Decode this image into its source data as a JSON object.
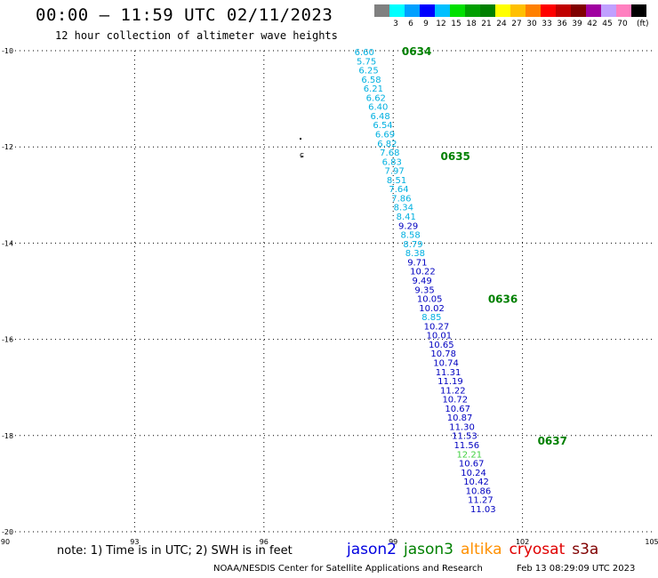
{
  "header": {
    "title": "00:00 – 11:59 UTC 02/11/2023",
    "subtitle": "12 hour collection of altimeter wave heights"
  },
  "colorbar": {
    "colors": [
      "#808080",
      "#00ffff",
      "#00a0ff",
      "#0000ff",
      "#00c0ff",
      "#00e000",
      "#00a000",
      "#008000",
      "#ffff00",
      "#ffc000",
      "#ff8000",
      "#ff0000",
      "#c00000",
      "#800000",
      "#a000a0",
      "#c0a0ff",
      "#ff80c0",
      "#000000"
    ],
    "labels": [
      "3",
      "6",
      "9",
      "12",
      "15",
      "18",
      "21",
      "24",
      "27",
      "30",
      "33",
      "36",
      "39",
      "42",
      "45",
      "70"
    ],
    "unit": "(ft)"
  },
  "chart_data": {
    "type": "scatter",
    "x_axis": {
      "range": [
        90,
        105
      ],
      "ticks": [
        "90",
        "93",
        "96",
        "99",
        "102",
        "105"
      ]
    },
    "y_axis": {
      "range": [
        -20,
        -10
      ],
      "ticks": [
        "-10",
        "-12",
        "-14",
        "-16",
        "-18",
        "-20"
      ]
    },
    "grid": true,
    "time_labels": [
      {
        "text": "0634",
        "lat": -10.0,
        "lon": 99.2,
        "color": "#008000"
      },
      {
        "text": "0635",
        "lat": -12.18,
        "lon": 100.1,
        "color": "#008000"
      },
      {
        "text": "0636",
        "lat": -15.15,
        "lon": 101.2,
        "color": "#008000"
      },
      {
        "text": "0637",
        "lat": -18.1,
        "lon": 102.35,
        "color": "#008000"
      }
    ],
    "swh_points": [
      {
        "v": "6.60",
        "lat": -10.0,
        "lon": 98.1,
        "c": "#00b0e0"
      },
      {
        "v": "5.75",
        "lat": -10.19,
        "lon": 98.15,
        "c": "#00b0e0"
      },
      {
        "v": "6.25",
        "lat": -10.38,
        "lon": 98.2,
        "c": "#00b0e0"
      },
      {
        "v": "6.58",
        "lat": -10.57,
        "lon": 98.26,
        "c": "#00b0e0"
      },
      {
        "v": "6.21",
        "lat": -10.76,
        "lon": 98.31,
        "c": "#00b0e0"
      },
      {
        "v": "6.62",
        "lat": -10.95,
        "lon": 98.37,
        "c": "#00b0e0"
      },
      {
        "v": "6.40",
        "lat": -11.14,
        "lon": 98.42,
        "c": "#00b0e0"
      },
      {
        "v": "6.48",
        "lat": -11.33,
        "lon": 98.47,
        "c": "#00b0e0"
      },
      {
        "v": "6.54",
        "lat": -11.52,
        "lon": 98.53,
        "c": "#00b0e0"
      },
      {
        "v": "6.69",
        "lat": -11.71,
        "lon": 98.58,
        "c": "#00b0e0"
      },
      {
        "v": "6.82",
        "lat": -11.9,
        "lon": 98.63,
        "c": "#00b0e0"
      },
      {
        "v": "7.68",
        "lat": -12.09,
        "lon": 98.69,
        "c": "#00b0e0"
      },
      {
        "v": "6.83",
        "lat": -12.28,
        "lon": 98.74,
        "c": "#00b0e0"
      },
      {
        "v": "7.97",
        "lat": -12.47,
        "lon": 98.8,
        "c": "#00b0e0"
      },
      {
        "v": "8.51",
        "lat": -12.66,
        "lon": 98.85,
        "c": "#00b0e0"
      },
      {
        "v": "7.64",
        "lat": -12.85,
        "lon": 98.9,
        "c": "#00b0e0"
      },
      {
        "v": "7.86",
        "lat": -13.04,
        "lon": 98.96,
        "c": "#00b0e0"
      },
      {
        "v": "8.34",
        "lat": -13.23,
        "lon": 99.01,
        "c": "#00b0e0"
      },
      {
        "v": "8.41",
        "lat": -13.42,
        "lon": 99.07,
        "c": "#00b0e0"
      },
      {
        "v": "9.29",
        "lat": -13.61,
        "lon": 99.12,
        "c": "#0000c0"
      },
      {
        "v": "8.58",
        "lat": -13.8,
        "lon": 99.17,
        "c": "#00b0e0"
      },
      {
        "v": "8.79",
        "lat": -13.99,
        "lon": 99.23,
        "c": "#00b0e0"
      },
      {
        "v": "8.38",
        "lat": -14.18,
        "lon": 99.28,
        "c": "#00b0e0"
      },
      {
        "v": "9.71",
        "lat": -14.37,
        "lon": 99.33,
        "c": "#0000c0"
      },
      {
        "v": "10.22",
        "lat": -14.56,
        "lon": 99.39,
        "c": "#0000c0"
      },
      {
        "v": "9.49",
        "lat": -14.75,
        "lon": 99.44,
        "c": "#0000c0"
      },
      {
        "v": "9.35",
        "lat": -14.94,
        "lon": 99.5,
        "c": "#0000c0"
      },
      {
        "v": "10.05",
        "lat": -15.13,
        "lon": 99.55,
        "c": "#0000c0"
      },
      {
        "v": "10.02",
        "lat": -15.32,
        "lon": 99.6,
        "c": "#0000c0"
      },
      {
        "v": "8.85",
        "lat": -15.51,
        "lon": 99.66,
        "c": "#00b0e0"
      },
      {
        "v": "10.27",
        "lat": -15.7,
        "lon": 99.71,
        "c": "#0000c0"
      },
      {
        "v": "10.01",
        "lat": -15.89,
        "lon": 99.77,
        "c": "#0000c0"
      },
      {
        "v": "10.65",
        "lat": -16.08,
        "lon": 99.82,
        "c": "#0000c0"
      },
      {
        "v": "10.78",
        "lat": -16.27,
        "lon": 99.87,
        "c": "#0000c0"
      },
      {
        "v": "10.74",
        "lat": -16.46,
        "lon": 99.93,
        "c": "#0000c0"
      },
      {
        "v": "11.31",
        "lat": -16.65,
        "lon": 99.98,
        "c": "#0000c0"
      },
      {
        "v": "11.19",
        "lat": -16.84,
        "lon": 100.03,
        "c": "#0000c0"
      },
      {
        "v": "11.22",
        "lat": -17.03,
        "lon": 100.09,
        "c": "#0000c0"
      },
      {
        "v": "10.72",
        "lat": -17.22,
        "lon": 100.14,
        "c": "#0000c0"
      },
      {
        "v": "10.67",
        "lat": -17.41,
        "lon": 100.2,
        "c": "#0000c0"
      },
      {
        "v": "10.87",
        "lat": -17.6,
        "lon": 100.25,
        "c": "#0000c0"
      },
      {
        "v": "11.30",
        "lat": -17.79,
        "lon": 100.3,
        "c": "#0000c0"
      },
      {
        "v": "11.53",
        "lat": -17.98,
        "lon": 100.36,
        "c": "#0000c0"
      },
      {
        "v": "11.56",
        "lat": -18.17,
        "lon": 100.41,
        "c": "#0000c0"
      },
      {
        "v": "12.21",
        "lat": -18.36,
        "lon": 100.47,
        "c": "#40d040"
      },
      {
        "v": "10.67",
        "lat": -18.55,
        "lon": 100.52,
        "c": "#0000c0"
      },
      {
        "v": "10.24",
        "lat": -18.74,
        "lon": 100.57,
        "c": "#0000c0"
      },
      {
        "v": "10.42",
        "lat": -18.93,
        "lon": 100.63,
        "c": "#0000c0"
      },
      {
        "v": "10.86",
        "lat": -19.12,
        "lon": 100.68,
        "c": "#0000c0"
      },
      {
        "v": "11.27",
        "lat": -19.31,
        "lon": 100.73,
        "c": "#0000c0"
      },
      {
        "v": "11.03",
        "lat": -19.5,
        "lon": 100.79,
        "c": "#0000c0"
      }
    ]
  },
  "footer": {
    "note": "note: 1) Time is in UTC; 2) SWH is in feet",
    "legend": [
      {
        "label": "jason2",
        "color": "#0000e0"
      },
      {
        "label": "jason3",
        "color": "#008000"
      },
      {
        "label": "altika",
        "color": "#ff9000"
      },
      {
        "label": "cryosat",
        "color": "#e00000"
      },
      {
        "label": "s3a",
        "color": "#800000"
      }
    ],
    "credit": "NOAA/NESDIS Center for Satellite Applications and Research",
    "date": "Feb 13 08:29:09 UTC 2023"
  }
}
